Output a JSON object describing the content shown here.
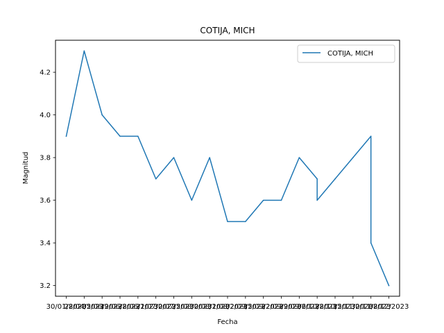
{
  "chart_data": {
    "type": "line",
    "title": "COTIJA, MICH",
    "xlabel": "Fecha",
    "ylabel": "Magnitud",
    "x": [
      0,
      1,
      2,
      3,
      4,
      5,
      6,
      7,
      8,
      9,
      10,
      11,
      12,
      13,
      14,
      14,
      15,
      16,
      17,
      17,
      18
    ],
    "x_tick_positions": [
      0,
      1,
      2,
      3,
      4,
      5,
      6,
      7,
      8,
      9,
      10,
      11,
      12,
      13,
      14,
      15,
      16,
      17,
      18
    ],
    "categories": [
      "30/01/2023",
      "28/04/2023",
      "05/06/2023",
      "19/06/2023",
      "28/06/2023",
      "21/07/2023",
      "30/07/2023",
      "25/08/2023",
      "30/08/2023",
      "31/08/2023",
      "02/09/2023",
      "15/09/2023",
      "22/09/2023",
      "29/09/2023",
      "06/10/2023",
      "28/10/2023",
      "15/11/2023",
      "30/11/2023",
      "08/12/2023"
    ],
    "series": [
      {
        "name": "COTIJA, MICH",
        "color": "#1f77b4",
        "values": [
          3.9,
          4.3,
          4.0,
          3.9,
          3.9,
          3.7,
          3.8,
          3.6,
          3.8,
          3.5,
          3.5,
          3.6,
          3.6,
          3.8,
          3.7,
          3.6,
          3.7,
          3.8,
          3.9,
          3.4,
          3.2
        ]
      }
    ],
    "xlim": [
      -0.6,
      18.6
    ],
    "ylim": [
      3.15,
      4.35
    ],
    "yticks": [
      3.2,
      3.4,
      3.6,
      3.8,
      4.0,
      4.2
    ],
    "ytick_labels": [
      "3.2",
      "3.4",
      "3.6",
      "3.8",
      "4.0",
      "4.2"
    ],
    "grid": false,
    "legend": {
      "position": "top-right",
      "entries": [
        "COTIJA, MICH"
      ]
    }
  }
}
